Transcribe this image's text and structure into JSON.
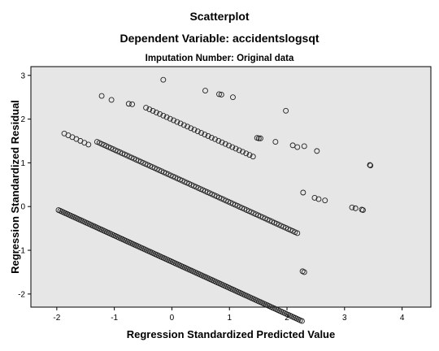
{
  "chart_data": {
    "type": "scatter",
    "title": "Scatterplot",
    "subtitle": "Dependent Variable: accidentslogsqt",
    "panel_title": "Imputation Number: Original data",
    "xlabel": "Regression Standardized Predicted Value",
    "ylabel": "Regression Standardized Residual",
    "xlim": [
      -2.45,
      4.5
    ],
    "ylim": [
      -2.3,
      3.2
    ],
    "xticks": [
      -2,
      -1,
      0,
      1,
      2,
      3,
      4
    ],
    "yticks": [
      -2,
      -1,
      0,
      1,
      2,
      3
    ],
    "grid": false,
    "colors": {
      "panel_background": "#e6e6e6",
      "marker_stroke": "#222222",
      "axis": "#000000"
    },
    "bands": [
      {
        "x_start": -1.97,
        "x_end": 2.28,
        "y_start": -0.08,
        "step": 0.03,
        "slope": -0.6
      },
      {
        "x_start": -1.3,
        "x_end": 2.2,
        "y_start": 1.48,
        "step": 0.04,
        "slope": -0.6
      },
      {
        "x_start": -1.87,
        "x_end": -1.45,
        "y_start": 1.67,
        "step": 0.07,
        "slope": -0.6
      },
      {
        "x_start": -0.45,
        "x_end": 1.45,
        "y_start": 2.26,
        "step": 0.06,
        "slope": -0.6
      }
    ],
    "points": [
      {
        "x": -1.22,
        "y": 2.53
      },
      {
        "x": -1.05,
        "y": 2.44
      },
      {
        "x": -0.75,
        "y": 2.35
      },
      {
        "x": -0.69,
        "y": 2.34
      },
      {
        "x": -0.15,
        "y": 2.9
      },
      {
        "x": 0.58,
        "y": 2.65
      },
      {
        "x": 0.82,
        "y": 2.57
      },
      {
        "x": 0.86,
        "y": 2.56
      },
      {
        "x": 1.06,
        "y": 2.5
      },
      {
        "x": 1.98,
        "y": 2.19
      },
      {
        "x": 1.48,
        "y": 1.57
      },
      {
        "x": 1.51,
        "y": 1.56
      },
      {
        "x": 1.54,
        "y": 1.56
      },
      {
        "x": 1.8,
        "y": 1.48
      },
      {
        "x": 2.1,
        "y": 1.4
      },
      {
        "x": 2.18,
        "y": 1.36
      },
      {
        "x": 2.3,
        "y": 1.38
      },
      {
        "x": 2.52,
        "y": 1.27
      },
      {
        "x": 2.28,
        "y": 0.32
      },
      {
        "x": 2.48,
        "y": 0.2
      },
      {
        "x": 2.55,
        "y": 0.17
      },
      {
        "x": 2.66,
        "y": 0.14
      },
      {
        "x": 3.13,
        "y": -0.02
      },
      {
        "x": 3.19,
        "y": -0.04
      },
      {
        "x": 3.3,
        "y": -0.07
      },
      {
        "x": 3.32,
        "y": -0.08
      },
      {
        "x": 3.44,
        "y": 0.95
      },
      {
        "x": 3.45,
        "y": 0.94
      },
      {
        "x": 2.27,
        "y": -1.48
      },
      {
        "x": 2.3,
        "y": -1.5
      }
    ]
  }
}
